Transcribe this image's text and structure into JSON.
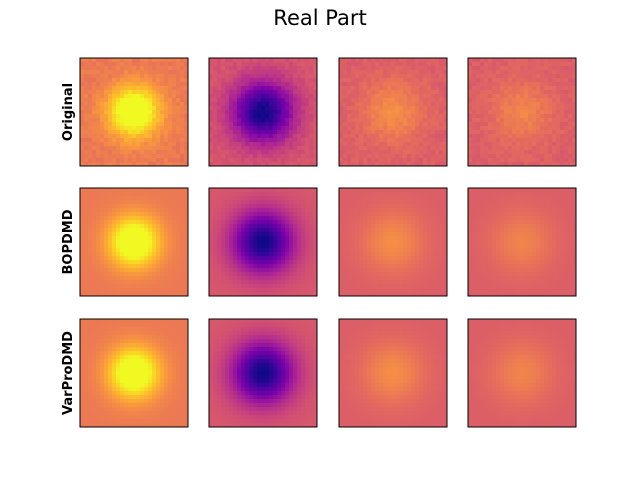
{
  "chart_data": {
    "type": "heatmap",
    "title": "Real Part",
    "colormap": "plasma",
    "rows": [
      {
        "label": "Original",
        "noisy": true,
        "panels": [
          {
            "center": 1.0,
            "edge": 0.58,
            "sigma": 0.33
          },
          {
            "center": 0.0,
            "edge": 0.56,
            "sigma": 0.4
          },
          {
            "center": 0.73,
            "edge": 0.58,
            "sigma": 0.4
          },
          {
            "center": 0.7,
            "edge": 0.58,
            "sigma": 0.4
          }
        ]
      },
      {
        "label": "BOPDMD",
        "noisy": false,
        "panels": [
          {
            "center": 1.0,
            "edge": 0.58,
            "sigma": 0.33
          },
          {
            "center": 0.0,
            "edge": 0.56,
            "sigma": 0.4
          },
          {
            "center": 0.73,
            "edge": 0.58,
            "sigma": 0.4
          },
          {
            "center": 0.7,
            "edge": 0.58,
            "sigma": 0.4
          }
        ]
      },
      {
        "label": "VarProDMD",
        "noisy": false,
        "panels": [
          {
            "center": 1.0,
            "edge": 0.58,
            "sigma": 0.33
          },
          {
            "center": 0.0,
            "edge": 0.56,
            "sigma": 0.4
          },
          {
            "center": 0.73,
            "edge": 0.58,
            "sigma": 0.4
          },
          {
            "center": 0.7,
            "edge": 0.58,
            "sigma": 0.4
          }
        ]
      }
    ],
    "ticks_visible": false,
    "grid": false,
    "legend": "none"
  }
}
